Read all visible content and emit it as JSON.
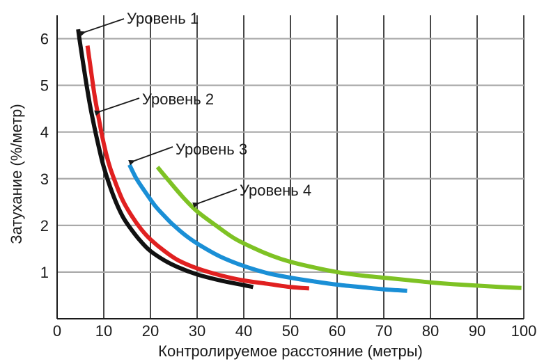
{
  "chart_data": {
    "type": "line",
    "xlabel": "Контролируемое расстояние (метры)",
    "ylabel": "Затухание (%/метр)",
    "xlim": [
      0,
      100
    ],
    "ylim": [
      0,
      6.5
    ],
    "x_ticks": [
      0,
      10,
      20,
      30,
      40,
      50,
      60,
      70,
      80,
      90,
      100
    ],
    "y_ticks": [
      1,
      2,
      3,
      4,
      5,
      6
    ],
    "grid": true,
    "series": [
      {
        "name": "Уровень 1",
        "color": "#111111",
        "x": [
          4.5,
          5,
          6,
          7,
          8,
          9,
          10,
          12,
          14,
          16,
          18,
          20,
          23,
          26,
          30,
          35,
          40,
          42
        ],
        "y": [
          6.2,
          5.85,
          5.2,
          4.6,
          4.1,
          3.65,
          3.25,
          2.65,
          2.2,
          1.9,
          1.65,
          1.45,
          1.25,
          1.1,
          0.95,
          0.82,
          0.72,
          0.68
        ]
      },
      {
        "name": "Уровень 2",
        "color": "#e02020",
        "x": [
          6.5,
          7,
          8,
          9,
          10,
          11,
          12,
          14,
          16,
          18,
          20,
          23,
          26,
          30,
          35,
          40,
          45,
          50,
          54
        ],
        "y": [
          5.85,
          5.5,
          4.8,
          4.25,
          3.75,
          3.35,
          3.05,
          2.55,
          2.2,
          1.92,
          1.7,
          1.45,
          1.25,
          1.08,
          0.93,
          0.82,
          0.75,
          0.68,
          0.65
        ]
      },
      {
        "name": "Уровень 3",
        "color": "#1a8fd6",
        "x": [
          15.5,
          17,
          19,
          21,
          23,
          25,
          28,
          31,
          35,
          40,
          45,
          50,
          55,
          60,
          65,
          70,
          75
        ],
        "y": [
          3.3,
          3.0,
          2.7,
          2.42,
          2.2,
          2.0,
          1.75,
          1.55,
          1.33,
          1.13,
          0.98,
          0.88,
          0.8,
          0.73,
          0.68,
          0.63,
          0.6
        ]
      },
      {
        "name": "Уровень 4",
        "color": "#7ec224",
        "x": [
          21.5,
          24,
          27,
          30,
          34,
          38,
          42,
          46,
          50,
          55,
          60,
          65,
          70,
          75,
          80,
          85,
          90,
          95,
          99.5
        ],
        "y": [
          3.25,
          2.95,
          2.6,
          2.3,
          2.0,
          1.72,
          1.52,
          1.35,
          1.22,
          1.1,
          1.0,
          0.93,
          0.88,
          0.83,
          0.78,
          0.74,
          0.71,
          0.68,
          0.66
        ]
      }
    ],
    "annotations": [
      {
        "text": "Уровень 1",
        "series_index": 0
      },
      {
        "text": "Уровень 2",
        "series_index": 1
      },
      {
        "text": "Уровень 3",
        "series_index": 2
      },
      {
        "text": "Уровень 4",
        "series_index": 3
      }
    ]
  }
}
